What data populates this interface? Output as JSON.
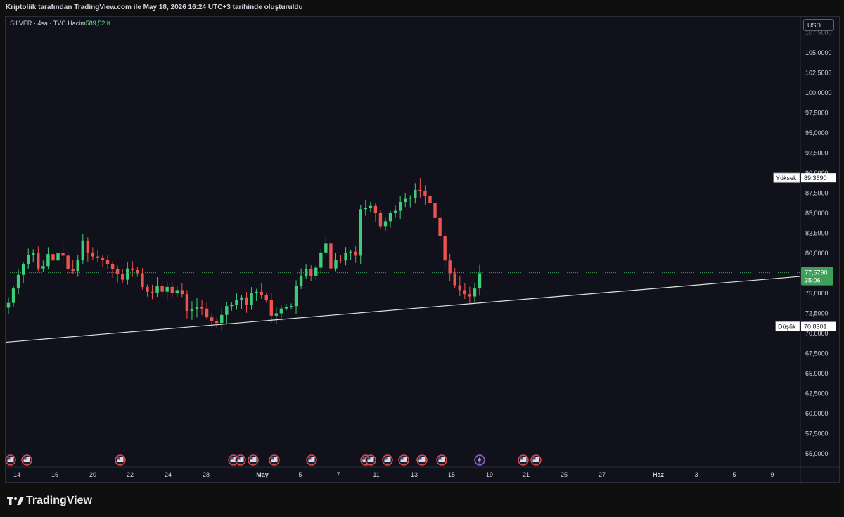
{
  "header": {
    "caption": "Kriptoliik tarafından TradingView.com ile May 18, 2026 16:24 UTC+3 tarihinde oluşturuldu"
  },
  "legend": {
    "symbol": "SILVER · 4sa · TVC",
    "volume_label": "Hacim",
    "volume_value": "589,52 K"
  },
  "currency_button": "USD",
  "logo_text": "TradingView",
  "colors": {
    "up": "#26a69a",
    "up_bright": "#3ccf7a",
    "down": "#ef5350",
    "background": "#10111a",
    "trendline": "#e0e0e0",
    "current_price": "#3e9f5a"
  },
  "chart_data": {
    "type": "candlestick",
    "symbol": "SILVER",
    "interval": "4sa",
    "ylim": [
      52.5,
      107.5
    ],
    "y_ticks": [
      "105,0000",
      "102,5000",
      "100,0000",
      "97,5000",
      "95,0000",
      "92,5000",
      "90,0000",
      "87,5000",
      "85,0000",
      "82,5000",
      "80,0000",
      "77,5000",
      "75,0000",
      "72,5000",
      "70,0000",
      "67,5000",
      "65,0000",
      "62,5000",
      "60,0000",
      "57,5000",
      "55,0000"
    ],
    "x_ticks": [
      "14",
      "16",
      "20",
      "22",
      "24",
      "28",
      "May",
      "5",
      "7",
      "11",
      "13",
      "15",
      "19",
      "21",
      "25",
      "27",
      "Haz",
      "3",
      "5",
      "9"
    ],
    "high_label": "Yüksek",
    "high_value": "89,3690",
    "low_label": "Düşük",
    "low_value": "70,8301",
    "current_price": "77,5790",
    "countdown": "35:06",
    "trendline": {
      "from_price": 68.9,
      "to_price": 77.1
    },
    "closes": [
      73.8,
      75.6,
      77.3,
      78.6,
      79.8,
      80.0,
      78.1,
      78.4,
      79.9,
      79.1,
      80.0,
      79.7,
      78.0,
      77.8,
      79.2,
      81.6,
      80.1,
      79.6,
      79.4,
      79.2,
      78.6,
      78.0,
      77.4,
      76.7,
      78.1,
      77.9,
      77.5,
      75.8,
      75.2,
      75.1,
      75.9,
      75.2,
      75.8,
      75.0,
      75.4,
      74.9,
      72.8,
      73.0,
      73.3,
      73.1,
      72.0,
      71.5,
      71.3,
      72.3,
      73.4,
      73.6,
      74.2,
      74.5,
      73.6,
      75.0,
      75.2,
      74.8,
      74.2,
      72.2,
      72.5,
      73.1,
      73.3,
      73.4,
      75.9,
      77.1,
      78.0,
      77.2,
      78.2,
      80.1,
      81.2,
      78.1,
      79.2,
      79.1,
      80.1,
      80.2,
      79.7,
      85.5,
      85.7,
      85.9,
      85.0,
      83.3,
      84.0,
      85.0,
      85.3,
      86.4,
      86.8,
      86.9,
      87.9,
      87.8,
      87.2,
      86.3,
      84.4,
      82.1,
      79.1,
      77.5,
      76.0,
      75.4,
      74.9,
      74.6,
      75.6,
      77.5
    ],
    "volume_events": {
      "flag_days": 16,
      "special": "lightning"
    }
  }
}
